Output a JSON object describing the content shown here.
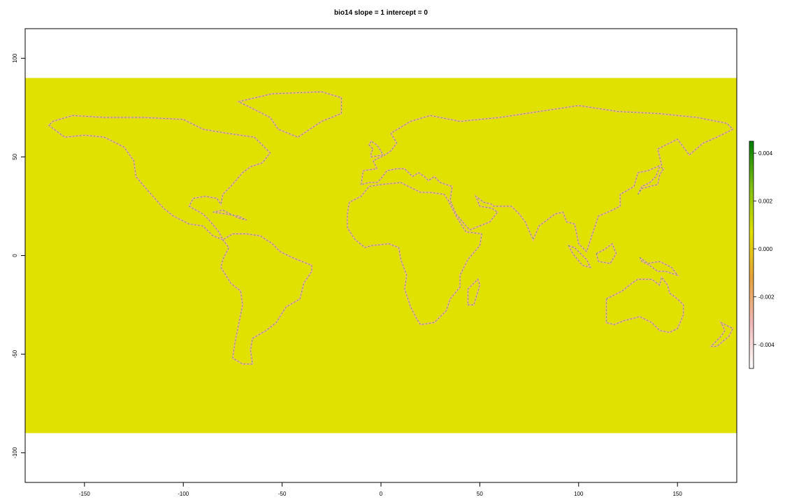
{
  "chart_data": {
    "type": "heatmap",
    "title": "bio14 slope = 1 intercept = 0",
    "xlabel": "",
    "ylabel": "",
    "xlim": [
      -180,
      180
    ],
    "ylim": [
      -115,
      115
    ],
    "data_extent": {
      "x": [
        -180,
        180
      ],
      "y": [
        -90,
        90
      ]
    },
    "x_ticks": [
      -150,
      -100,
      -50,
      0,
      50,
      100,
      150
    ],
    "y_ticks": [
      100,
      50,
      0,
      -50,
      -100
    ],
    "background_value": 0.0,
    "background_color": "#e1e100",
    "legend": {
      "placement": "right",
      "range": [
        -0.005,
        0.0045
      ],
      "ticks": [
        0.004,
        0.002,
        0.0,
        -0.002,
        -0.004
      ],
      "tick_labels": [
        "0.004",
        "0.002",
        "0.000",
        "-0.002",
        "-0.004"
      ],
      "colors": [
        "#ffffff",
        "#f0b8b8",
        "#e6a23c",
        "#e1e100",
        "#7fbf14",
        "#008000"
      ]
    },
    "grid": false
  }
}
